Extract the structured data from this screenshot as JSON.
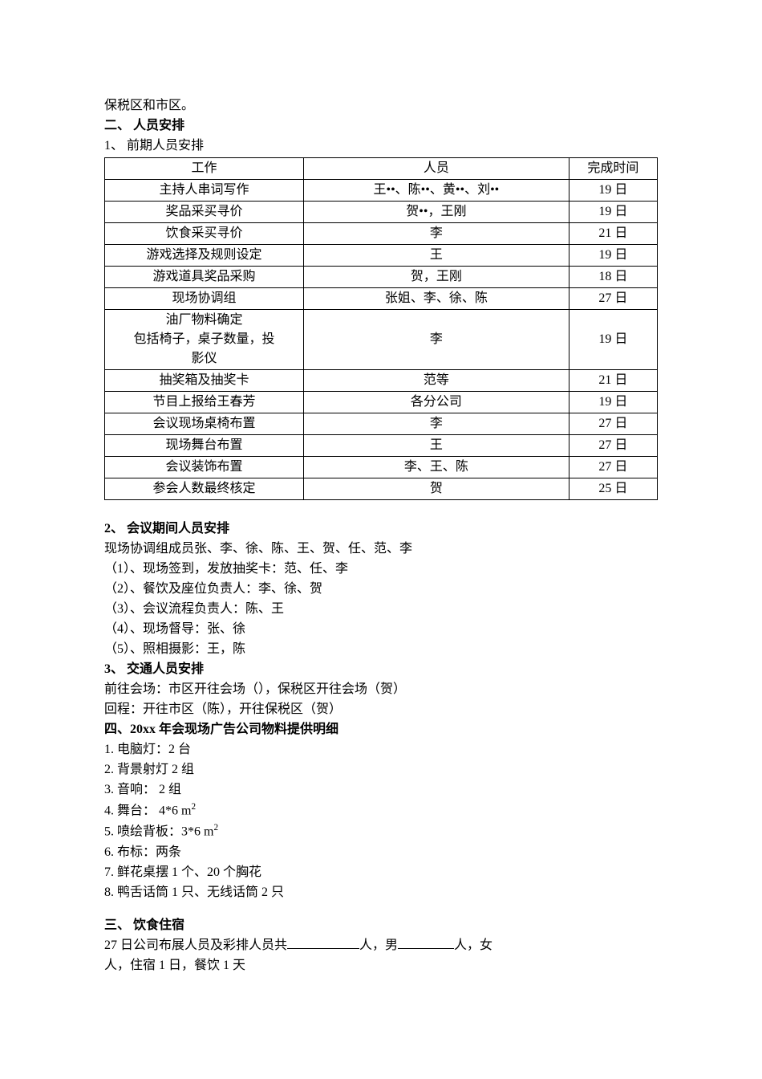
{
  "intro_line": "保税区和市区。",
  "section2": {
    "heading": "二、  人员安排",
    "sub1": "1、   前期人员安排",
    "table": {
      "columns": [
        "工作",
        "人员",
        "完成时间"
      ],
      "rows": [
        {
          "work": "主持人串词写作",
          "person": "王••、陈••、黄••、刘••",
          "time": "19 日"
        },
        {
          "work": "奖品采买寻价",
          "person": "贺••，王刚",
          "time": "19 日"
        },
        {
          "work": "饮食采买寻价",
          "person": "李",
          "time": "21 日"
        },
        {
          "work": "游戏选择及规则设定",
          "person": "王",
          "time": "19 日"
        },
        {
          "work": "游戏道具奖品采购",
          "person": "贺，王刚",
          "time": "18 日"
        },
        {
          "work": "现场协调组",
          "person": "张姐、李、徐、陈",
          "time": "27 日"
        },
        {
          "work": "油厂物料确定\n包括椅子，桌子数量，投\n影仪",
          "person": "李",
          "time": "19 日"
        },
        {
          "work": "抽奖箱及抽奖卡",
          "person": "范等",
          "time": "21 日"
        },
        {
          "work": "节目上报给王春芳",
          "person": "各分公司",
          "time": "19 日"
        },
        {
          "work": "会议现场桌椅布置",
          "person": "李",
          "time": "27 日"
        },
        {
          "work": "现场舞台布置",
          "person": "王",
          "time": "27 日"
        },
        {
          "work": "会议装饰布置",
          "person": "李、王、陈",
          "time": "27 日"
        },
        {
          "work": "参会人数最终核定",
          "person": "贺",
          "time": "25 日"
        }
      ]
    },
    "sub2": {
      "heading": "2、   会议期间人员安排",
      "line1": "现场协调组成员张、李、徐、陈、王、贺、任、范、李",
      "items": [
        "（1）、现场签到，发放抽奖卡：范、任、李",
        "（2）、餐饮及座位负责人：李、徐、贺",
        "（3）、会议流程负责人：陈、王",
        "（4）、现场督导：张、徐",
        "（5）、照相摄影：王，陈"
      ]
    },
    "sub3": {
      "heading": "3、   交通人员安排",
      "line1": "前往会场：市区开往会场（），保税区开往会场（贺）",
      "line2": "回程：开往市区（陈），开往保税区（贺）"
    }
  },
  "section4": {
    "heading": "四、20xx 年会现场广告公司物料提供明细",
    "items": [
      "1.  电脑灯：2 台",
      "2.  背景射灯   2 组",
      "3.  音响：    2 组",
      "4.  舞台：   4*6 m",
      "5.  喷绘背板：3*6 m",
      "6.  布标：两条",
      "7.  鲜花桌摆 1 个、20 个胸花",
      "8.  鸭舌话筒 1 只、无线话筒 2 只"
    ],
    "squared_indices": [
      3,
      4
    ]
  },
  "section3": {
    "heading": "三、 饮食住宿",
    "line1_prefix": "27 日公司布展人员及彩排人员共",
    "line1_mid1": "人，男",
    "line1_mid2": "人，女",
    "line2": "人，住宿 1 日，餐饮 1 天"
  },
  "styles": {
    "background_color": "#ffffff",
    "text_color": "#000000",
    "border_color": "#000000",
    "font_family": "SimSun",
    "base_fontsize": 16
  }
}
